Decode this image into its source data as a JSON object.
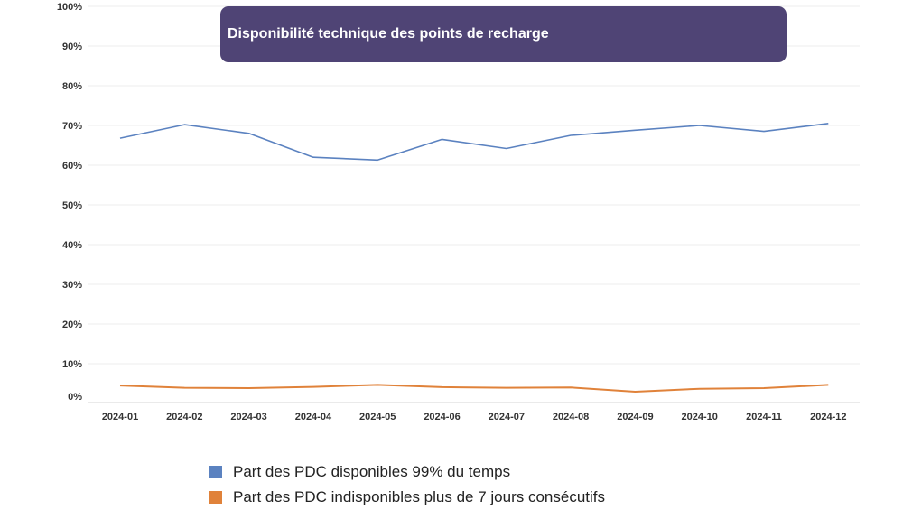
{
  "chart_data": {
    "type": "line",
    "title": "Disponibilité technique des points de recharge",
    "categories": [
      "2024-01",
      "2024-02",
      "2024-03",
      "2024-04",
      "2024-05",
      "2024-06",
      "2024-07",
      "2024-08",
      "2024-09",
      "2024-10",
      "2024-11",
      "2024-12"
    ],
    "y_ticks": [
      "0%",
      "10%",
      "20%",
      "30%",
      "40%",
      "50%",
      "60%",
      "70%",
      "80%",
      "90%",
      "100%"
    ],
    "ylim": [
      0,
      100
    ],
    "grid": true,
    "legend_position": "bottom",
    "series": [
      {
        "name": "Part des PDC disponibles 99% du temps",
        "color": "#5b82c0",
        "values": [
          66.8,
          70.2,
          68.0,
          62.0,
          61.3,
          66.5,
          64.2,
          67.5,
          68.8,
          70.0,
          68.5,
          70.5
        ]
      },
      {
        "name": "Part des PDC indisponibles plus de 7 jours consécutifs",
        "color": "#e0823a",
        "values": [
          3.3,
          2.6,
          2.5,
          2.9,
          3.5,
          2.8,
          2.6,
          2.7,
          1.4,
          2.3,
          2.5,
          3.5
        ]
      }
    ]
  }
}
